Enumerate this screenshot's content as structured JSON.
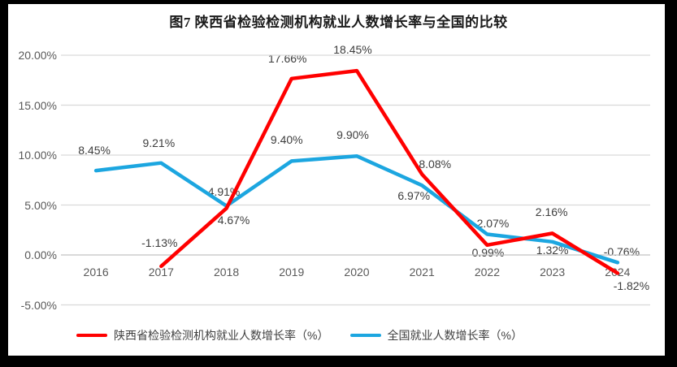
{
  "title": "图7 陕西省检验检测机构就业人数增长率与全国的比较",
  "colors": {
    "shaanxi_series": "#FF0000",
    "national_series": "#1CA6E0",
    "gridline": "#D9D9D9",
    "zero_line": "#C2C2C2",
    "axis_text": "#595959",
    "data_label_text": "#3D3D3D",
    "title_text": "#1A1A1A",
    "background": "#FFFFFF",
    "frame": "#000000"
  },
  "chart_data": {
    "type": "line",
    "title": "图7 陕西省检验检测机构就业人数增长率与全国的比较",
    "categories": [
      "2016",
      "2017",
      "2018",
      "2019",
      "2020",
      "2021",
      "2022",
      "2023",
      "2024"
    ],
    "series": [
      {
        "name": "陕西省检验检测机构就业人数增长率（%）",
        "color": "#FF0000",
        "values": [
          null,
          -1.13,
          4.67,
          17.66,
          18.45,
          8.08,
          0.99,
          2.16,
          -1.82
        ],
        "labels": [
          "",
          "-1.13%",
          "4.67%",
          "17.66%",
          "18.45%",
          "8.08%",
          "0.99%",
          "2.16%",
          "-1.82%"
        ],
        "label_offsets": [
          [
            0,
            0
          ],
          [
            -2,
            -29
          ],
          [
            9,
            14
          ],
          [
            -5,
            -25
          ],
          [
            -5,
            -26
          ],
          [
            16,
            -13
          ],
          [
            1,
            9
          ],
          [
            -1,
            -26
          ],
          [
            17,
            16
          ]
        ]
      },
      {
        "name": "全国就业人数增长率（%）",
        "color": "#1CA6E0",
        "values": [
          8.45,
          9.21,
          4.91,
          9.4,
          9.9,
          6.97,
          2.07,
          1.32,
          -0.76
        ],
        "labels": [
          "8.45%",
          "9.21%",
          "4.91%",
          "9.40%",
          "9.90%",
          "6.97%",
          "2.07%",
          "1.32%",
          "-0.76%"
        ],
        "label_offsets": [
          [
            -2,
            -25
          ],
          [
            -3,
            -25
          ],
          [
            -3,
            -18
          ],
          [
            -6,
            -26
          ],
          [
            -5,
            -26
          ],
          [
            -10,
            13
          ],
          [
            7,
            -14
          ],
          [
            0,
            10
          ],
          [
            5,
            -13
          ]
        ]
      }
    ],
    "y_ticks": [
      {
        "label": "20.00%",
        "value": 20
      },
      {
        "label": "15.00%",
        "value": 15
      },
      {
        "label": "10.00%",
        "value": 10
      },
      {
        "label": "5.00%",
        "value": 5
      },
      {
        "label": "0.00%",
        "value": 0
      },
      {
        "label": "-5.00%",
        "value": -5
      }
    ],
    "ylim": [
      -5,
      20
    ],
    "grid": true,
    "legend_position": "bottom"
  },
  "legend": {
    "items": [
      {
        "label": "陕西省检验检测机构就业人数增长率（%）",
        "color": "#FF0000"
      },
      {
        "label": "全国就业人数增长率（%）",
        "color": "#1CA6E0"
      }
    ]
  }
}
